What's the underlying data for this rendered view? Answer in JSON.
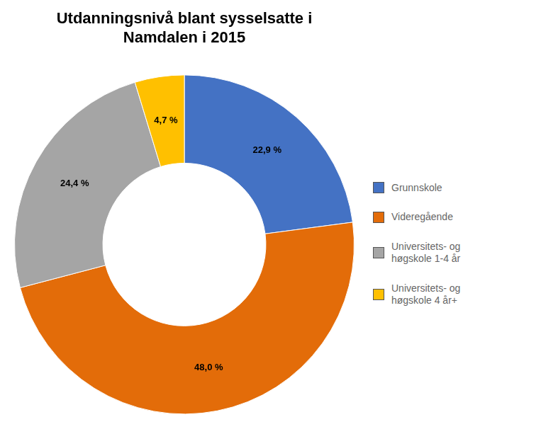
{
  "chart_data": {
    "type": "doughnut",
    "title": "Utdanningsnivå blant sysselsatte i\nNamdalen i 2015",
    "categories": [
      "Grunnskole",
      "Videregående",
      "Universitets- og\nhøgskole 1-4 år",
      "Universitets- og\nhøgskole 4 år+"
    ],
    "values": [
      22.9,
      48.0,
      24.4,
      4.7
    ],
    "value_labels": [
      "22,9 %",
      "48,0 %",
      "24,4 %",
      "4,7 %"
    ],
    "colors": [
      "#4472C4",
      "#E36C09",
      "#A5A5A5",
      "#FFC000"
    ],
    "data_labels": true,
    "legend": "right"
  }
}
